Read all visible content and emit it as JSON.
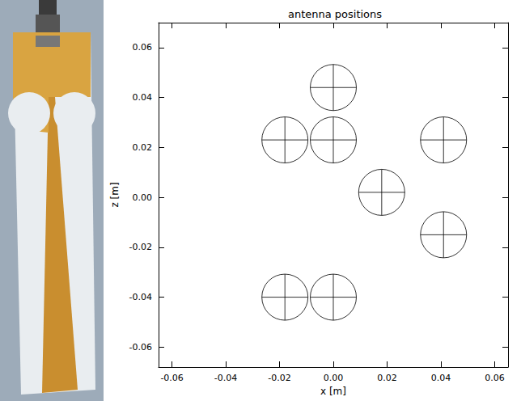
{
  "chart_data": {
    "type": "scatter",
    "title": "antenna positions",
    "x_label": "x [m]",
    "y_label": "z [m]",
    "x": [
      0.0,
      -0.018,
      0.0,
      0.041,
      0.018,
      0.041,
      -0.018,
      0.0
    ],
    "values": [
      0.044,
      0.023,
      0.023,
      0.023,
      0.002,
      -0.015,
      -0.04,
      -0.04
    ],
    "color": "#000000",
    "marker": "circle_cross",
    "xlim": [
      -0.065,
      0.065
    ],
    "xticks": [
      {
        "value": -0.06,
        "label": "-0.06"
      },
      {
        "value": -0.04,
        "label": "-0.04"
      },
      {
        "value": -0.02,
        "label": "-0.02"
      },
      {
        "value": 0,
        "label": "0.00"
      },
      {
        "value": 0.02,
        "label": "0.02"
      },
      {
        "value": 0.04,
        "label": "0.04"
      },
      {
        "value": 0.06,
        "label": "0.06"
      }
    ],
    "ylim": [
      -0.068,
      0.07
    ],
    "yticks": [
      {
        "value": -0.06,
        "label": "-0.06"
      },
      {
        "value": -0.04,
        "label": "-0.04"
      },
      {
        "value": -0.02,
        "label": "-0.02"
      },
      {
        "value": 0,
        "label": "0.00"
      },
      {
        "value": 0.02,
        "label": "0.02"
      },
      {
        "value": 0.04,
        "label": "0.04"
      },
      {
        "value": 0.06,
        "label": "0.06"
      }
    ],
    "grid": false
  }
}
